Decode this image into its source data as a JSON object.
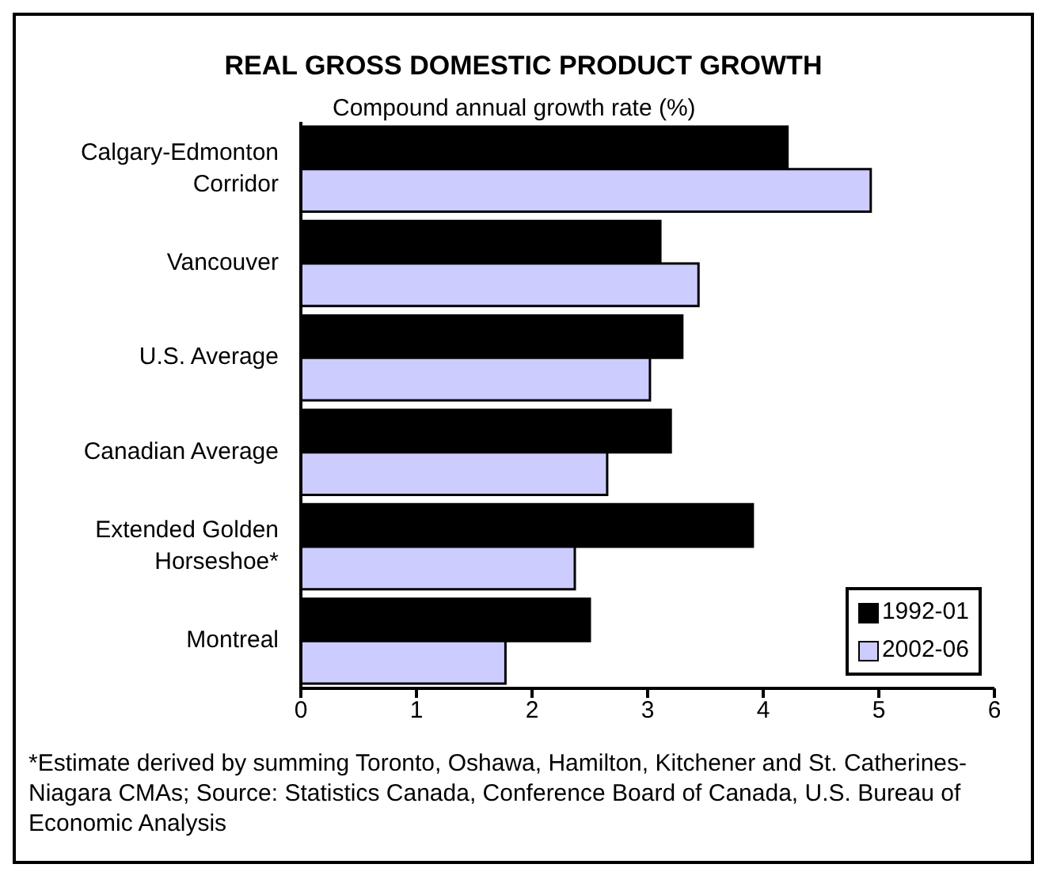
{
  "chart_data": {
    "type": "bar",
    "orientation": "horizontal",
    "title": "REAL GROSS DOMESTIC PRODUCT GROWTH",
    "subtitle": "Compound annual growth rate (%)",
    "categories": [
      "Calgary-Edmonton Corridor",
      "Vancouver",
      "U.S. Average",
      "Canadian Average",
      "Extended Golden Horseshoe*",
      "Montreal"
    ],
    "series": [
      {
        "name": "1992-01",
        "color": "#000000",
        "values": [
          4.21,
          3.11,
          3.3,
          3.2,
          3.91,
          2.5
        ]
      },
      {
        "name": "2002-06",
        "color": "#ccccff",
        "values": [
          4.93,
          3.44,
          3.02,
          2.65,
          2.37,
          1.77
        ]
      }
    ],
    "xlim": [
      0,
      6
    ],
    "xticks": [
      0,
      1,
      2,
      3,
      4,
      5,
      6
    ],
    "grid": false,
    "legend": "bottom right",
    "annotations": [
      "*Estimate derived by summing Toronto, Oshawa, Hamilton, Kitchener and St. Catherines-Niagara CMAs; Source: Statistics Canada, Conference Board of Canada, U.S. Bureau of Economic Analysis"
    ]
  }
}
